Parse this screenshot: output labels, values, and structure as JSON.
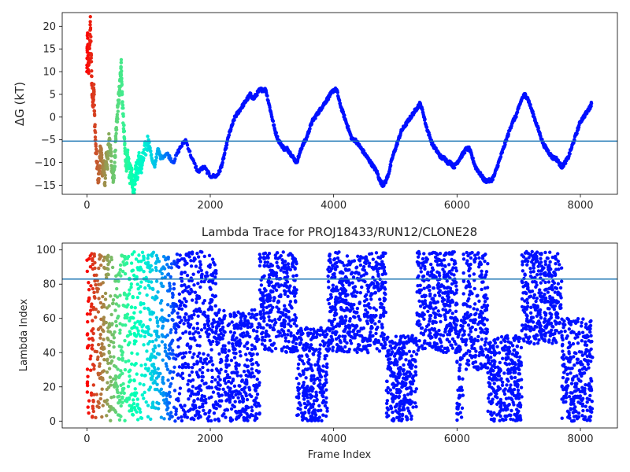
{
  "chart_data": [
    {
      "type": "scatter",
      "title": "",
      "xlabel": "",
      "ylabel": "ΔG (kT)",
      "xlim": [
        -400,
        8600
      ],
      "ylim": [
        -17,
        23
      ],
      "xticks": [
        0,
        2000,
        4000,
        6000,
        8000
      ],
      "yticks": [
        -15,
        -10,
        -5,
        0,
        5,
        10,
        15,
        20
      ],
      "reference_line": {
        "y": -5.3,
        "color": "#1f77b4"
      },
      "colormap": "rainbow (red at frame 0 to purple at frame ~1500 onward)",
      "trajectory_points": [
        [
          0,
          10
        ],
        [
          10,
          18
        ],
        [
          25,
          10
        ],
        [
          40,
          14
        ],
        [
          55,
          21
        ],
        [
          70,
          13
        ],
        [
          85,
          5
        ],
        [
          100,
          4
        ],
        [
          115,
          6
        ],
        [
          130,
          -3
        ],
        [
          150,
          -8
        ],
        [
          170,
          -11
        ],
        [
          190,
          -14
        ],
        [
          210,
          -9
        ],
        [
          230,
          -7
        ],
        [
          250,
          -12
        ],
        [
          270,
          -10
        ],
        [
          290,
          -15
        ],
        [
          310,
          -8
        ],
        [
          330,
          -11
        ],
        [
          360,
          -5
        ],
        [
          390,
          -8
        ],
        [
          410,
          -12
        ],
        [
          430,
          -14
        ],
        [
          450,
          -10
        ],
        [
          470,
          -5
        ],
        [
          490,
          0
        ],
        [
          510,
          3
        ],
        [
          530,
          6
        ],
        [
          545,
          9
        ],
        [
          555,
          12
        ],
        [
          565,
          7
        ],
        [
          580,
          2
        ],
        [
          600,
          -3
        ],
        [
          620,
          -8
        ],
        [
          640,
          -10
        ],
        [
          660,
          -9
        ],
        [
          680,
          -11
        ],
        [
          700,
          -13
        ],
        [
          720,
          -12
        ],
        [
          740,
          -14
        ],
        [
          760,
          -16
        ],
        [
          780,
          -13
        ],
        [
          800,
          -11
        ],
        [
          820,
          -12
        ],
        [
          840,
          -10
        ],
        [
          860,
          -9
        ],
        [
          880,
          -11
        ],
        [
          900,
          -10
        ],
        [
          950,
          -7
        ],
        [
          1000,
          -5
        ],
        [
          1050,
          -9
        ],
        [
          1100,
          -11
        ],
        [
          1150,
          -7
        ],
        [
          1200,
          -9
        ],
        [
          1300,
          -8
        ],
        [
          1400,
          -10
        ],
        [
          1500,
          -7
        ],
        [
          1600,
          -5
        ],
        [
          1700,
          -9
        ],
        [
          1800,
          -12
        ],
        [
          1900,
          -11
        ],
        [
          2000,
          -13
        ],
        [
          2100,
          -13
        ],
        [
          2150,
          -12
        ],
        [
          2200,
          -10
        ],
        [
          2250,
          -7
        ],
        [
          2300,
          -4
        ],
        [
          2350,
          -2
        ],
        [
          2400,
          0
        ],
        [
          2450,
          1
        ],
        [
          2500,
          2
        ],
        [
          2550,
          3
        ],
        [
          2600,
          4
        ],
        [
          2650,
          5
        ],
        [
          2700,
          4
        ],
        [
          2750,
          5
        ],
        [
          2800,
          6
        ],
        [
          2850,
          6
        ],
        [
          2900,
          6
        ],
        [
          2950,
          3
        ],
        [
          3000,
          0
        ],
        [
          3050,
          -3
        ],
        [
          3100,
          -5
        ],
        [
          3150,
          -6
        ],
        [
          3200,
          -7
        ],
        [
          3250,
          -7
        ],
        [
          3300,
          -8
        ],
        [
          3350,
          -9
        ],
        [
          3400,
          -10
        ],
        [
          3450,
          -8
        ],
        [
          3500,
          -6
        ],
        [
          3550,
          -5
        ],
        [
          3600,
          -3
        ],
        [
          3650,
          -1
        ],
        [
          3700,
          0
        ],
        [
          3750,
          1
        ],
        [
          3800,
          2
        ],
        [
          3850,
          3
        ],
        [
          3900,
          4
        ],
        [
          3950,
          5
        ],
        [
          4000,
          6
        ],
        [
          4050,
          6
        ],
        [
          4100,
          3
        ],
        [
          4150,
          1
        ],
        [
          4200,
          -1
        ],
        [
          4250,
          -3
        ],
        [
          4300,
          -5
        ],
        [
          4350,
          -5
        ],
        [
          4400,
          -6
        ],
        [
          4450,
          -7
        ],
        [
          4500,
          -8
        ],
        [
          4550,
          -9
        ],
        [
          4600,
          -10
        ],
        [
          4650,
          -11
        ],
        [
          4700,
          -12
        ],
        [
          4750,
          -14
        ],
        [
          4800,
          -15
        ],
        [
          4850,
          -14
        ],
        [
          4900,
          -12
        ],
        [
          4950,
          -9
        ],
        [
          5000,
          -7
        ],
        [
          5050,
          -5
        ],
        [
          5100,
          -3
        ],
        [
          5150,
          -2
        ],
        [
          5200,
          -1
        ],
        [
          5250,
          0
        ],
        [
          5300,
          1
        ],
        [
          5350,
          2
        ],
        [
          5400,
          3
        ],
        [
          5450,
          1
        ],
        [
          5500,
          -2
        ],
        [
          5550,
          -4
        ],
        [
          5600,
          -6
        ],
        [
          5650,
          -7
        ],
        [
          5700,
          -8
        ],
        [
          5750,
          -9
        ],
        [
          5800,
          -9
        ],
        [
          5850,
          -10
        ],
        [
          5900,
          -10
        ],
        [
          5950,
          -11
        ],
        [
          6000,
          -10
        ],
        [
          6050,
          -9
        ],
        [
          6100,
          -8
        ],
        [
          6150,
          -7
        ],
        [
          6200,
          -7
        ],
        [
          6250,
          -9
        ],
        [
          6300,
          -11
        ],
        [
          6350,
          -12
        ],
        [
          6400,
          -13
        ],
        [
          6450,
          -14
        ],
        [
          6500,
          -14
        ],
        [
          6550,
          -14
        ],
        [
          6600,
          -13
        ],
        [
          6650,
          -11
        ],
        [
          6700,
          -9
        ],
        [
          6750,
          -7
        ],
        [
          6800,
          -5
        ],
        [
          6850,
          -3
        ],
        [
          6900,
          -1
        ],
        [
          6950,
          0
        ],
        [
          7000,
          2
        ],
        [
          7050,
          4
        ],
        [
          7100,
          5
        ],
        [
          7150,
          4
        ],
        [
          7200,
          2
        ],
        [
          7250,
          0
        ],
        [
          7300,
          -2
        ],
        [
          7350,
          -4
        ],
        [
          7400,
          -6
        ],
        [
          7450,
          -7
        ],
        [
          7500,
          -8
        ],
        [
          7550,
          -9
        ],
        [
          7600,
          -9
        ],
        [
          7650,
          -10
        ],
        [
          7700,
          -11
        ],
        [
          7750,
          -10
        ],
        [
          7800,
          -9
        ],
        [
          7850,
          -7
        ],
        [
          7900,
          -5
        ],
        [
          7950,
          -3
        ],
        [
          8000,
          -1
        ],
        [
          8050,
          0
        ],
        [
          8100,
          1
        ],
        [
          8150,
          2
        ],
        [
          8180,
          3
        ]
      ]
    },
    {
      "type": "scatter",
      "title": "Lambda Trace for PROJ18433/RUN12/CLONE28",
      "xlabel": "Frame Index",
      "ylabel": "Lambda Index",
      "xlim": [
        -400,
        8600
      ],
      "ylim": [
        -4,
        104
      ],
      "xticks": [
        0,
        2000,
        4000,
        6000,
        8000
      ],
      "yticks": [
        0,
        20,
        40,
        60,
        80,
        100
      ],
      "reference_line": {
        "y": 83,
        "color": "#1f77b4"
      },
      "colormap": "rainbow (red at frame 0 to purple at frame ~1500 onward)",
      "density_bands": [
        {
          "x_range": [
            0,
            2100
          ],
          "y_range": [
            0,
            99
          ]
        },
        {
          "x_range": [
            2100,
            2800
          ],
          "y_range": [
            0,
            65
          ]
        },
        {
          "x_range": [
            2800,
            3400
          ],
          "y_range": [
            40,
            99
          ]
        },
        {
          "x_range": [
            3400,
            3900
          ],
          "y_range": [
            0,
            55
          ]
        },
        {
          "x_range": [
            3900,
            4850
          ],
          "y_range": [
            40,
            99
          ]
        },
        {
          "x_range": [
            4850,
            5350
          ],
          "y_range": [
            0,
            50
          ]
        },
        {
          "x_range": [
            5350,
            6000
          ],
          "y_range": [
            40,
            99
          ]
        },
        {
          "x_range": [
            6000,
            6100
          ],
          "y_range": [
            0,
            60
          ]
        },
        {
          "x_range": [
            6100,
            6500
          ],
          "y_range": [
            30,
            99
          ]
        },
        {
          "x_range": [
            6500,
            7050
          ],
          "y_range": [
            0,
            50
          ]
        },
        {
          "x_range": [
            7050,
            7700
          ],
          "y_range": [
            45,
            99
          ]
        },
        {
          "x_range": [
            7700,
            8200
          ],
          "y_range": [
            0,
            60
          ]
        }
      ]
    }
  ]
}
